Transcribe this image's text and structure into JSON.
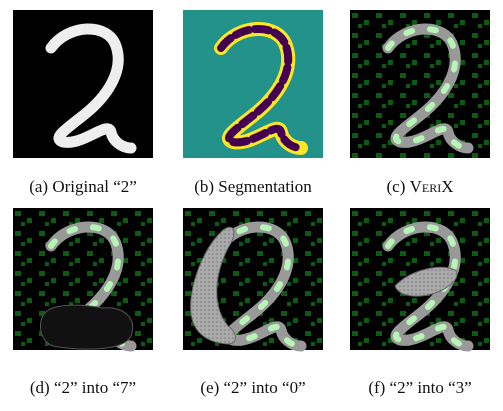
{
  "panels": [
    {
      "label": "(a)",
      "text": "Original “2”"
    },
    {
      "label": "(b)",
      "text": "Segmentation"
    },
    {
      "label": "(c)",
      "text": "VeriX"
    },
    {
      "label": "(d)",
      "text": "“2” into “7”"
    },
    {
      "label": "(e)",
      "text": "“2” into “0”"
    },
    {
      "label": "(f)",
      "text": "“2” into “3”"
    }
  ]
}
